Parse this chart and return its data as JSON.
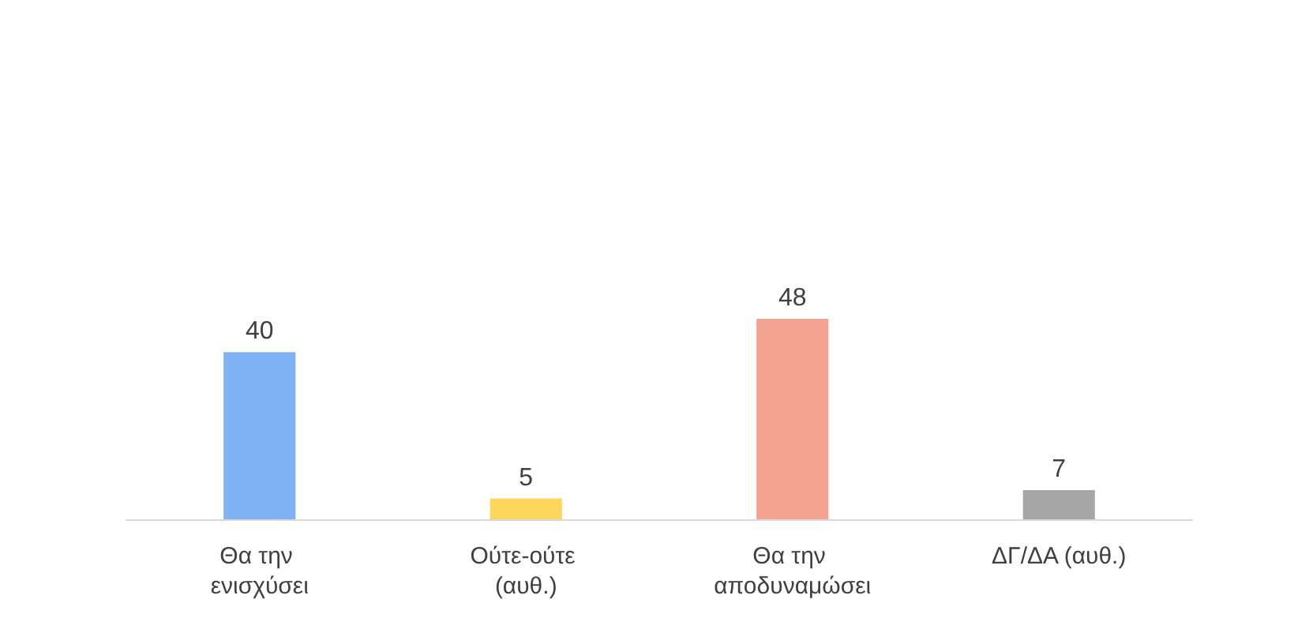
{
  "chart_data": {
    "type": "bar",
    "categories": [
      "Θα την ενισχύσει",
      "Ούτε-ούτε (αυθ.)",
      "Θα την αποδυναμώσει",
      "ΔΓ/ΔΑ (αυθ.)"
    ],
    "values": [
      40,
      5,
      48,
      7
    ],
    "colors": [
      "#7fb2f4",
      "#ffd65c",
      "#f4a292",
      "#a6a6a6"
    ],
    "data_labels": true
  }
}
